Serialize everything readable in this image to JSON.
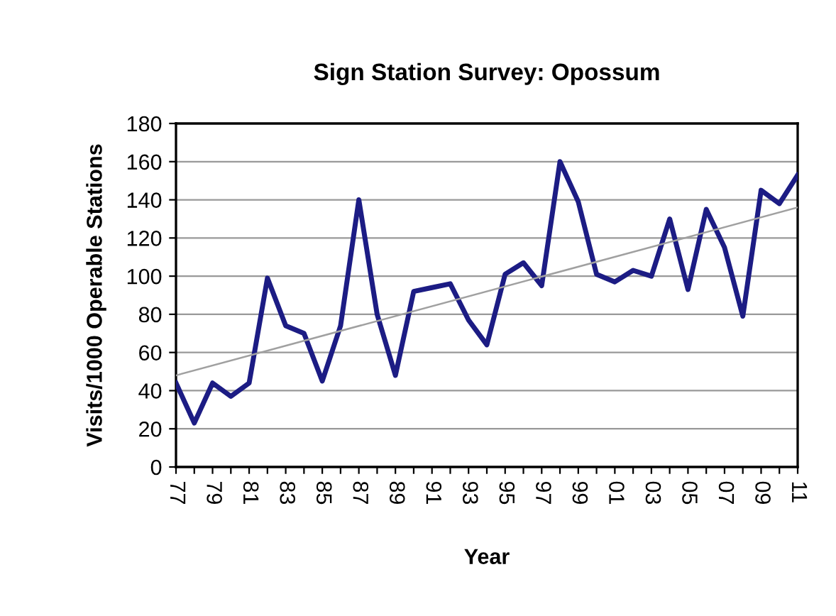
{
  "chart_data": {
    "type": "line",
    "title": "Sign Station Survey: Opossum",
    "xlabel": "Year",
    "ylabel": "Visits/1000 Operable Stations",
    "categories": [
      "77",
      null,
      "79",
      null,
      "81",
      null,
      "83",
      null,
      "85",
      null,
      "87",
      null,
      "89",
      null,
      "91",
      null,
      "93",
      null,
      "95",
      null,
      "97",
      null,
      "99",
      null,
      "01",
      null,
      "03",
      null,
      "05",
      null,
      "07",
      null,
      "09",
      null,
      "11"
    ],
    "series": [
      {
        "color": "#1c1c84",
        "values": [
          44,
          23,
          44,
          37,
          44,
          99,
          74,
          70,
          45,
          74,
          140,
          80,
          48,
          92,
          94,
          96,
          77,
          64,
          101,
          107,
          95,
          160,
          139,
          101,
          97,
          103,
          100,
          130,
          93,
          135,
          115,
          79,
          145,
          138,
          153
        ]
      },
      {
        "type": "line",
        "color": "#a0a0a0",
        "x": [
          "77",
          "11"
        ],
        "values": [
          48,
          136
        ]
      }
    ],
    "ylim": [
      0,
      180
    ],
    "yticks": [
      0,
      20,
      40,
      60,
      80,
      100,
      120,
      140,
      160,
      180
    ],
    "grid": "y",
    "legend": false,
    "marker": "none",
    "line_style": "solid"
  }
}
